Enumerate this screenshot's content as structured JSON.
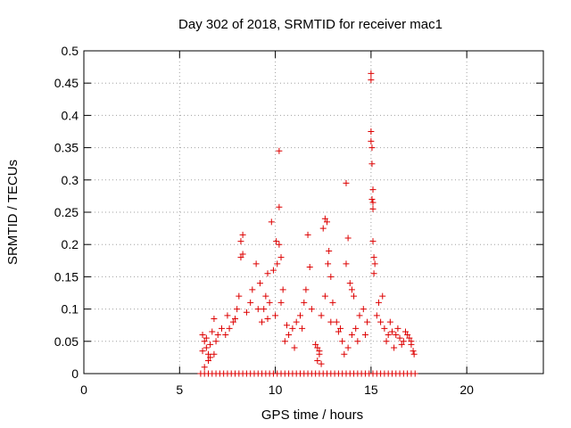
{
  "chart_data": {
    "type": "scatter",
    "title": "Day 302 of 2018, SRMTID for receiver mac1",
    "xlabel": "GPS time / hours",
    "ylabel": "SRMTID / TECUs",
    "xlim": [
      0,
      24
    ],
    "ylim": [
      0,
      0.5
    ],
    "x_ticks": [
      0,
      5,
      10,
      15,
      20
    ],
    "x_tick_labels": [
      "0",
      "5",
      "10",
      "15",
      "20"
    ],
    "y_ticks": [
      0,
      0.05,
      0.1,
      0.15,
      0.2,
      0.25,
      0.3,
      0.35,
      0.4,
      0.45,
      0.5
    ],
    "y_tick_labels": [
      "0",
      "0.05",
      "0.1",
      "0.15",
      "0.2",
      "0.25",
      "0.3",
      "0.35",
      "0.4",
      "0.45",
      "0.5"
    ],
    "grid": true,
    "marker": "plus",
    "marker_color": "#dd0000",
    "series": [
      {
        "name": "SRMTID",
        "points": [
          [
            15.0,
            0.465
          ],
          [
            15.0,
            0.455
          ],
          [
            15.0,
            0.375
          ],
          [
            15.0,
            0.36
          ],
          [
            15.05,
            0.35
          ],
          [
            15.05,
            0.325
          ],
          [
            15.1,
            0.285
          ],
          [
            15.05,
            0.27
          ],
          [
            15.1,
            0.265
          ],
          [
            15.1,
            0.255
          ],
          [
            15.1,
            0.205
          ],
          [
            15.15,
            0.18
          ],
          [
            15.2,
            0.17
          ],
          [
            15.15,
            0.155
          ],
          [
            10.2,
            0.345
          ],
          [
            10.2,
            0.258
          ],
          [
            9.8,
            0.235
          ],
          [
            10.2,
            0.2
          ],
          [
            10.05,
            0.205
          ],
          [
            10.3,
            0.18
          ],
          [
            10.1,
            0.17
          ],
          [
            9.9,
            0.16
          ],
          [
            9.6,
            0.155
          ],
          [
            9.5,
            0.12
          ],
          [
            9.4,
            0.1
          ],
          [
            9.7,
            0.11
          ],
          [
            10.0,
            0.09
          ],
          [
            10.4,
            0.13
          ],
          [
            10.3,
            0.11
          ],
          [
            9.3,
            0.08
          ],
          [
            9.2,
            0.14
          ],
          [
            9.0,
            0.17
          ],
          [
            8.8,
            0.13
          ],
          [
            13.7,
            0.295
          ],
          [
            12.6,
            0.24
          ],
          [
            12.7,
            0.235
          ],
          [
            12.5,
            0.225
          ],
          [
            12.8,
            0.19
          ],
          [
            12.75,
            0.17
          ],
          [
            12.9,
            0.15
          ],
          [
            12.6,
            0.12
          ],
          [
            12.4,
            0.09
          ],
          [
            13.0,
            0.11
          ],
          [
            13.2,
            0.08
          ],
          [
            13.4,
            0.07
          ],
          [
            11.7,
            0.215
          ],
          [
            11.8,
            0.165
          ],
          [
            11.6,
            0.13
          ],
          [
            11.5,
            0.11
          ],
          [
            11.9,
            0.1
          ],
          [
            11.3,
            0.09
          ],
          [
            11.1,
            0.08
          ],
          [
            10.9,
            0.07
          ],
          [
            10.7,
            0.06
          ],
          [
            10.5,
            0.05
          ],
          [
            11.0,
            0.04
          ],
          [
            8.3,
            0.215
          ],
          [
            8.2,
            0.205
          ],
          [
            8.3,
            0.185
          ],
          [
            8.2,
            0.18
          ],
          [
            8.1,
            0.12
          ],
          [
            8.0,
            0.1
          ],
          [
            7.8,
            0.08
          ],
          [
            7.6,
            0.07
          ],
          [
            7.4,
            0.06
          ],
          [
            7.2,
            0.07
          ],
          [
            7.0,
            0.06
          ],
          [
            6.8,
            0.085
          ],
          [
            6.7,
            0.065
          ],
          [
            6.2,
            0.06
          ],
          [
            6.3,
            0.05
          ],
          [
            6.4,
            0.04
          ],
          [
            6.5,
            0.03
          ],
          [
            6.6,
            0.025
          ],
          [
            6.5,
            0.02
          ],
          [
            6.3,
            0.01
          ],
          [
            6.2,
            0.035
          ],
          [
            6.4,
            0.055
          ],
          [
            6.6,
            0.045
          ],
          [
            6.8,
            0.03
          ],
          [
            6.9,
            0.05
          ],
          [
            12.2,
            0.04
          ],
          [
            12.3,
            0.035
          ],
          [
            12.2,
            0.02
          ],
          [
            12.4,
            0.015
          ],
          [
            12.3,
            0.03
          ],
          [
            12.1,
            0.045
          ],
          [
            13.5,
            0.05
          ],
          [
            13.6,
            0.03
          ],
          [
            13.8,
            0.04
          ],
          [
            14.0,
            0.06
          ],
          [
            14.2,
            0.07
          ],
          [
            14.4,
            0.09
          ],
          [
            14.6,
            0.1
          ],
          [
            14.8,
            0.08
          ],
          [
            13.9,
            0.14
          ],
          [
            14.1,
            0.12
          ],
          [
            13.8,
            0.21
          ],
          [
            13.7,
            0.17
          ],
          [
            14.0,
            0.13
          ],
          [
            15.3,
            0.09
          ],
          [
            15.5,
            0.08
          ],
          [
            15.7,
            0.07
          ],
          [
            15.9,
            0.06
          ],
          [
            16.1,
            0.065
          ],
          [
            16.3,
            0.06
          ],
          [
            16.5,
            0.055
          ],
          [
            16.7,
            0.05
          ],
          [
            16.9,
            0.06
          ],
          [
            17.0,
            0.055
          ],
          [
            17.1,
            0.045
          ],
          [
            17.2,
            0.035
          ],
          [
            17.25,
            0.03
          ],
          [
            15.6,
            0.12
          ],
          [
            15.4,
            0.11
          ],
          [
            16.0,
            0.08
          ],
          [
            16.4,
            0.07
          ],
          [
            16.8,
            0.065
          ],
          [
            17.1,
            0.05
          ],
          [
            7.5,
            0.09
          ],
          [
            7.9,
            0.085
          ],
          [
            8.5,
            0.095
          ],
          [
            8.7,
            0.11
          ],
          [
            9.1,
            0.1
          ],
          [
            9.6,
            0.085
          ],
          [
            10.6,
            0.075
          ],
          [
            11.4,
            0.07
          ],
          [
            12.9,
            0.08
          ],
          [
            13.3,
            0.065
          ],
          [
            14.3,
            0.05
          ],
          [
            14.7,
            0.06
          ],
          [
            15.8,
            0.05
          ],
          [
            16.2,
            0.04
          ],
          [
            16.6,
            0.045
          ]
        ],
        "zero_points_x": [
          6.1,
          6.3,
          6.5,
          6.7,
          6.9,
          7.1,
          7.3,
          7.5,
          7.7,
          7.9,
          8.1,
          8.3,
          8.5,
          8.7,
          8.9,
          9.1,
          9.3,
          9.5,
          9.7,
          9.9,
          10.1,
          10.3,
          10.5,
          10.7,
          10.9,
          11.1,
          11.3,
          11.5,
          11.7,
          11.9,
          12.1,
          12.3,
          12.5,
          12.7,
          12.9,
          13.1,
          13.3,
          13.5,
          13.7,
          13.9,
          14.1,
          14.3,
          14.5,
          14.7,
          14.9,
          15.1,
          15.3,
          15.5,
          15.7,
          15.9,
          16.1,
          16.3,
          16.5,
          16.7,
          16.9,
          17.1,
          17.3
        ]
      }
    ]
  }
}
